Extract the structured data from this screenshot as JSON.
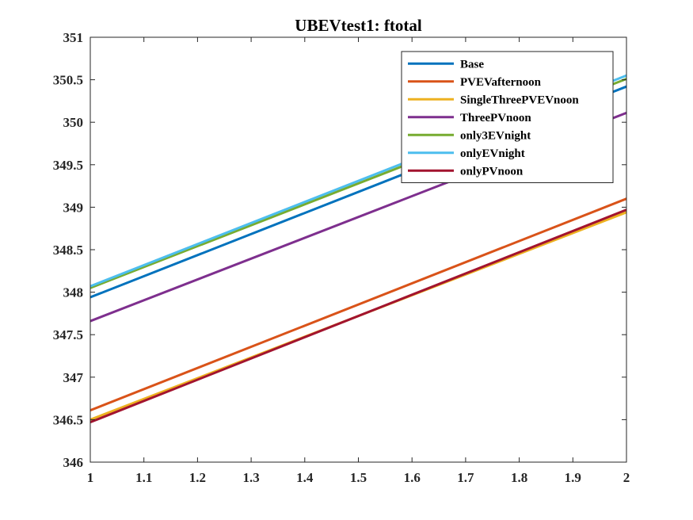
{
  "chart_data": {
    "type": "line",
    "title": "UBEVtest1: ftotal",
    "xlabel": "",
    "ylabel": "",
    "xlim": [
      1,
      2
    ],
    "ylim": [
      346,
      351
    ],
    "xticks": [
      "1",
      "1.1",
      "1.2",
      "1.3",
      "1.4",
      "1.5",
      "1.6",
      "1.7",
      "1.8",
      "1.9",
      "2"
    ],
    "yticks": [
      "346",
      "346.5",
      "347",
      "347.5",
      "348",
      "348.5",
      "349",
      "349.5",
      "350",
      "350.5",
      "351"
    ],
    "grid": false,
    "legend_position": "top-right",
    "x": [
      1,
      2
    ],
    "series": [
      {
        "name": "Base",
        "color": "#0072BD",
        "values": [
          347.94,
          350.42
        ]
      },
      {
        "name": "PVEVafternoon",
        "color": "#D95319",
        "values": [
          346.61,
          349.1
        ]
      },
      {
        "name": "SingleThreePVEVnoon",
        "color": "#EDB120",
        "values": [
          346.5,
          348.94
        ]
      },
      {
        "name": "ThreePVnoon",
        "color": "#7E2F8E",
        "values": [
          347.66,
          350.11
        ]
      },
      {
        "name": "only3EVnight",
        "color": "#77AC30",
        "values": [
          348.05,
          350.51
        ]
      },
      {
        "name": "onlyEVnight",
        "color": "#4DBEEE",
        "values": [
          348.07,
          350.55
        ]
      },
      {
        "name": "onlyPVnoon",
        "color": "#A2142F",
        "values": [
          346.47,
          348.97
        ]
      }
    ]
  }
}
